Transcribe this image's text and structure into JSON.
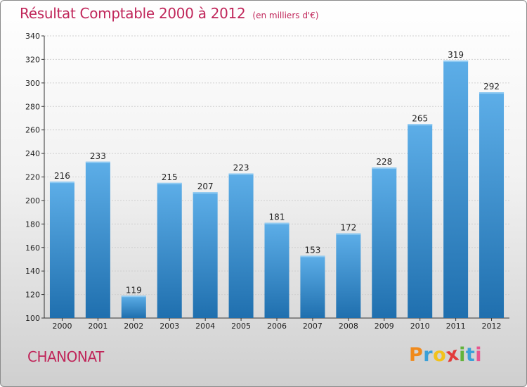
{
  "title": "Résultat Comptable 2000 à 2012",
  "subtitle": "(en milliers d'€)",
  "commune": "CHANONAT",
  "brand": {
    "letters": [
      "P",
      "r",
      "o",
      "x",
      "i",
      "t",
      "i"
    ],
    "colors": [
      "#f08a1c",
      "#3aa0d8",
      "#f2c21b",
      "#e23b3b",
      "#62b33a",
      "#3aa0d8",
      "#e9548e"
    ]
  },
  "colors": {
    "bar_top": "#5daee8",
    "bar_bottom": "#1f6fae",
    "title": "#c0265a"
  },
  "chart_data": {
    "type": "bar",
    "categories": [
      "2000",
      "2001",
      "2002",
      "2003",
      "2004",
      "2005",
      "2006",
      "2007",
      "2008",
      "2009",
      "2010",
      "2011",
      "2012"
    ],
    "values": [
      216,
      233,
      119,
      215,
      207,
      223,
      181,
      153,
      172,
      228,
      265,
      319,
      292
    ],
    "data_labels": [
      "216",
      "233",
      "119",
      "215",
      "207",
      "223",
      "181",
      "153",
      "172",
      "228",
      "265",
      "319",
      "292"
    ],
    "yticks": [
      "100",
      "120",
      "140",
      "160",
      "180",
      "200",
      "220",
      "240",
      "260",
      "280",
      "300",
      "320",
      "340"
    ],
    "ylim": [
      100,
      340
    ],
    "grid": true,
    "legend": "none"
  }
}
